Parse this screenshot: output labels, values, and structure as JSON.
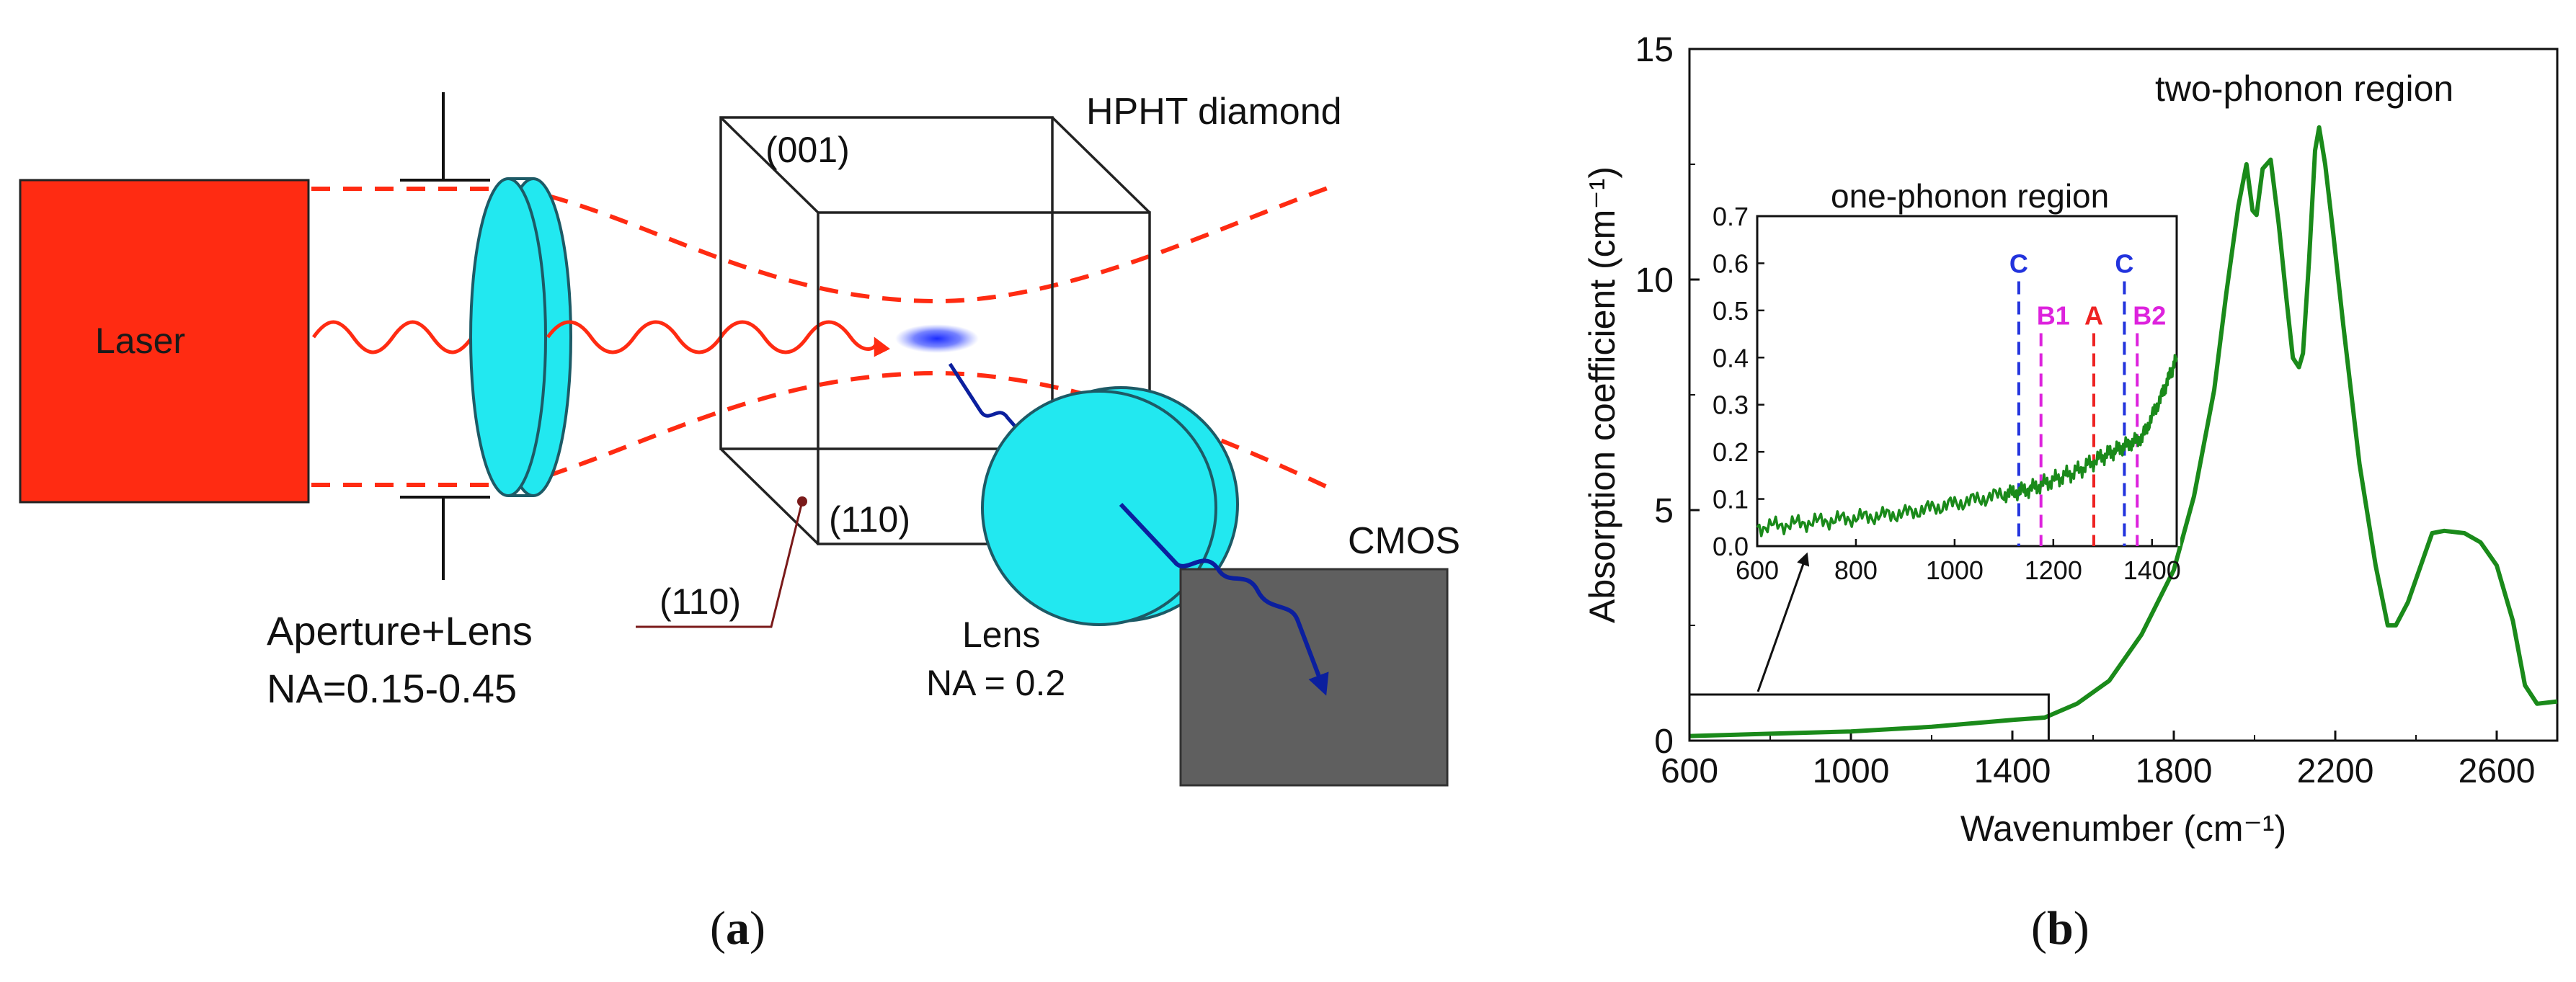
{
  "figure_a": {
    "caption_letter": "a",
    "laser_label": "Laser",
    "crystal_label": "HPHT diamond",
    "face_top": "(001)",
    "face_front": "(110)",
    "face_side": "(110)",
    "aperture_label": "Aperture+Lens",
    "aperture_na": "NA=0.15-0.45",
    "lens_label": "Lens",
    "lens_na": "NA = 0.2",
    "sensor_label": "CMOS",
    "colors": {
      "laser": "#ff2b12",
      "lens": "#22e8f0",
      "beam": "#ff2b12",
      "emission": "#0b1f9e",
      "sensor": "#5f5f5f"
    }
  },
  "figure_b": {
    "caption_letter": "b",
    "chart_data": [
      {
        "type": "line",
        "title": "two-phonon region",
        "xlabel": "Wavenumber (cm⁻¹)",
        "ylabel": "Absorption coefficient (cm⁻¹)",
        "xlim": [
          600,
          2750
        ],
        "ylim": [
          0,
          15
        ],
        "xticks": [
          600,
          1000,
          1400,
          1800,
          2200,
          2600
        ],
        "yticks": [
          0,
          5,
          10,
          15
        ],
        "series": [
          {
            "name": "absorption",
            "color": "#1a8a1a",
            "points": [
              [
                600,
                0.1
              ],
              [
                800,
                0.15
              ],
              [
                1000,
                0.2
              ],
              [
                1200,
                0.3
              ],
              [
                1400,
                0.45
              ],
              [
                1480,
                0.5
              ],
              [
                1560,
                0.8
              ],
              [
                1640,
                1.3
              ],
              [
                1720,
                2.3
              ],
              [
                1800,
                3.7
              ],
              [
                1850,
                5.3
              ],
              [
                1900,
                7.6
              ],
              [
                1930,
                9.7
              ],
              [
                1960,
                11.6
              ],
              [
                1980,
                12.5
              ],
              [
                1995,
                11.5
              ],
              [
                2005,
                11.4
              ],
              [
                2020,
                12.4
              ],
              [
                2040,
                12.6
              ],
              [
                2060,
                11.2
              ],
              [
                2080,
                9.5
              ],
              [
                2095,
                8.3
              ],
              [
                2110,
                8.1
              ],
              [
                2120,
                8.4
              ],
              [
                2135,
                10.4
              ],
              [
                2150,
                12.8
              ],
              [
                2160,
                13.3
              ],
              [
                2175,
                12.5
              ],
              [
                2195,
                11.0
              ],
              [
                2220,
                9.0
              ],
              [
                2260,
                6.0
              ],
              [
                2300,
                3.8
              ],
              [
                2330,
                2.5
              ],
              [
                2350,
                2.5
              ],
              [
                2380,
                3.0
              ],
              [
                2420,
                4.0
              ],
              [
                2440,
                4.5
              ],
              [
                2470,
                4.55
              ],
              [
                2520,
                4.5
              ],
              [
                2560,
                4.3
              ],
              [
                2600,
                3.8
              ],
              [
                2640,
                2.6
              ],
              [
                2670,
                1.2
              ],
              [
                2700,
                0.8
              ],
              [
                2750,
                0.85
              ]
            ]
          }
        ],
        "zoom_box": {
          "x": [
            600,
            1490
          ],
          "y": [
            0,
            1.0
          ]
        }
      },
      {
        "type": "line",
        "title": "one-phonon region",
        "xlim": [
          600,
          1450
        ],
        "ylim": [
          0,
          0.7
        ],
        "xticks": [
          600,
          800,
          1000,
          1200,
          1400
        ],
        "yticks": [
          0.0,
          0.1,
          0.2,
          0.3,
          0.4,
          0.5,
          0.6,
          0.7
        ],
        "series": [
          {
            "name": "absorption",
            "color": "#1a8a1a",
            "points": [
              [
                600,
                0.04
              ],
              [
                700,
                0.05
              ],
              [
                800,
                0.06
              ],
              [
                900,
                0.07
              ],
              [
                1000,
                0.09
              ],
              [
                1100,
                0.11
              ],
              [
                1150,
                0.12
              ],
              [
                1200,
                0.14
              ],
              [
                1250,
                0.16
              ],
              [
                1300,
                0.19
              ],
              [
                1340,
                0.21
              ],
              [
                1380,
                0.23
              ],
              [
                1420,
                0.32
              ],
              [
                1450,
                0.4
              ]
            ]
          }
        ],
        "markers": [
          {
            "label": "C",
            "x": 1130,
            "color": "#2233dd"
          },
          {
            "label": "B1",
            "x": 1175,
            "color": "#dd22dd"
          },
          {
            "label": "A",
            "x": 1282,
            "color": "#ee2222"
          },
          {
            "label": "C",
            "x": 1344,
            "color": "#2233dd"
          },
          {
            "label": "B2",
            "x": 1370,
            "color": "#dd22dd"
          }
        ]
      }
    ]
  }
}
